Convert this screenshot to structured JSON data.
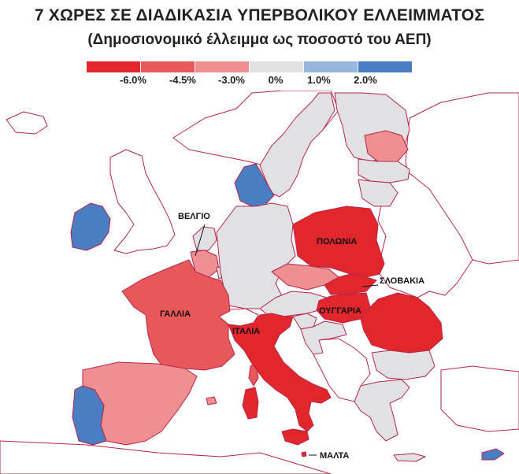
{
  "title": "7 ΧΩΡΕΣ ΣΕ ΔΙΑΔΙΚΑΣΙΑ ΥΠΕΡΒΟΛΙΚΟΥ ΕΛΛΕΙΜΜΑΤΟΣ",
  "subtitle": "(Δημοσιονομικό έλλειμμα ως ποσοστό του ΑΕΠ)",
  "legend": {
    "ticks": [
      "-6.0%",
      "-4.5%",
      "-3.0%",
      "0%",
      "1.0%",
      "2.0%"
    ],
    "colors": [
      "#e2272c",
      "#e8585a",
      "#ef8f92",
      "#e1e1e4",
      "#97b6de",
      "#4a7ec3"
    ]
  },
  "labels": {
    "belgium": "ΒΕΛΓΙΟ",
    "poland": "ΠΟΛΩΝΙΑ",
    "slovakia": "ΣΛΟΒΑΚΙΑ",
    "hungary": "ΟΥΓΓΑΡΙΑ",
    "france": "ΓΑΛΛΙΑ",
    "italy": "ΙΤΑΛΙΑ",
    "malta": "ΜΑΛΤΑ"
  },
  "colors": {
    "sea": "#ffffff",
    "border": "#b5254a",
    "non_eu": "#ffffff",
    "neutral": "#e1e1e4",
    "deep_red": "#e2272c",
    "red": "#e8585a",
    "pink": "#ef8f92",
    "light_blue": "#97b6de",
    "blue": "#4a7ec3"
  }
}
